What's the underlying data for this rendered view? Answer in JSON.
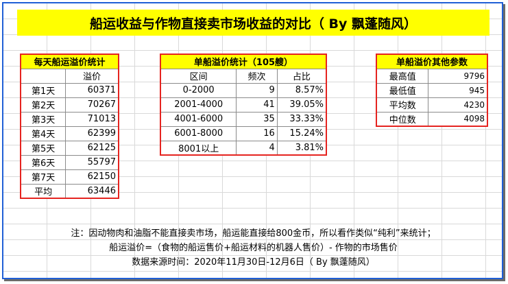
{
  "title": "船运收益与作物直接卖市场收益的对比（ By 飘蓬随风）",
  "daily_table": {
    "header": "每天船运溢价统计",
    "value_col": "溢价",
    "rows": [
      {
        "label": "第1天",
        "value": "60371"
      },
      {
        "label": "第2天",
        "value": "70267"
      },
      {
        "label": "第3天",
        "value": "71013"
      },
      {
        "label": "第4天",
        "value": "62399"
      },
      {
        "label": "第5天",
        "value": "62125"
      },
      {
        "label": "第6天",
        "value": "55797"
      },
      {
        "label": "第7天",
        "value": "62150"
      },
      {
        "label": "平均",
        "value": "63446"
      }
    ]
  },
  "ship_table": {
    "header": "单船溢价统计（105艘）",
    "columns": [
      "区间",
      "频次",
      "占比"
    ],
    "rows": [
      {
        "range": "0-2000",
        "freq": "9",
        "pct": "8.57%"
      },
      {
        "range": "2001-4000",
        "freq": "41",
        "pct": "39.05%"
      },
      {
        "range": "4001-6000",
        "freq": "35",
        "pct": "33.33%"
      },
      {
        "range": "6001-8000",
        "freq": "16",
        "pct": "15.24%"
      },
      {
        "range": "8001以上",
        "freq": "4",
        "pct": "3.81%"
      }
    ]
  },
  "params_table": {
    "header": "单船溢价其他参数",
    "rows": [
      {
        "label": "最高值",
        "value": "9796"
      },
      {
        "label": "最低值",
        "value": "945"
      },
      {
        "label": "平均数",
        "value": "4230"
      },
      {
        "label": "中位数",
        "value": "4098"
      }
    ]
  },
  "notes": [
    "注：因动物肉和油脂不能直接卖市场，船运能直接给800金币，所以看作类似“纯利”来统计；",
    "船运溢价=（食物的船运售价+船运材料的机器人售价）- 作物的市场售价",
    "数据来源时间：2020年11月30日-12月6日（ By 飘蓬随风）"
  ],
  "colors": {
    "title_bg": "#ffff00",
    "table_border": "#e5231f",
    "frame_border": "#1f5fd6"
  }
}
